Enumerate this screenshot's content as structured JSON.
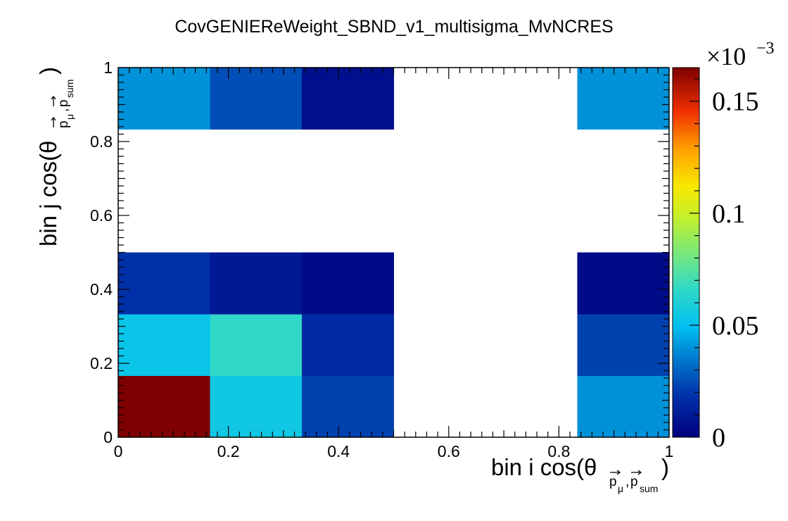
{
  "chart_data": {
    "type": "heatmap",
    "title": "CovGENIEReWeight_SBND_v1_multisigma_MvNCRES",
    "xlabel": {
      "main": "bin i cos(θ",
      "sub_vec1": "p",
      "sub_greek": "μ",
      "sub_sep": ",",
      "sub_vec2": "p",
      "sub_sum": "sum",
      "close": ")"
    },
    "ylabel": {
      "main": "bin j cos(θ",
      "sub_vec1": "p",
      "sub_greek": "μ",
      "sub_sep": ",",
      "sub_vec2": "p",
      "sub_sum": "sum",
      "close": ")"
    },
    "x_edges": [
      0,
      0.1667,
      0.3333,
      0.5,
      0.6667,
      0.8333,
      1.0
    ],
    "y_edges": [
      0,
      0.1667,
      0.3333,
      0.5,
      0.6667,
      0.8333,
      1.0
    ],
    "xlim": [
      0,
      1
    ],
    "ylim": [
      0,
      1
    ],
    "x_ticks": [
      "0",
      "0.2",
      "0.4",
      "0.6",
      "0.8",
      "1"
    ],
    "y_ticks": [
      "0",
      "0.2",
      "0.4",
      "0.6",
      "0.8",
      "1"
    ],
    "x_tick_values": [
      0,
      0.2,
      0.4,
      0.6,
      0.8,
      1
    ],
    "y_tick_values": [
      0,
      0.2,
      0.4,
      0.6,
      0.8,
      1
    ],
    "units_note": "values ×10^-3",
    "z_range": [
      0,
      0.165
    ],
    "values": [
      [
        0.165,
        0.055,
        0.022,
        null,
        null,
        0.04
      ],
      [
        0.053,
        0.066,
        0.016,
        null,
        null,
        0.022
      ],
      [
        0.018,
        0.01,
        0.004,
        null,
        null,
        0.004
      ],
      [
        null,
        null,
        null,
        null,
        null,
        null
      ],
      [
        null,
        null,
        null,
        null,
        null,
        null
      ],
      [
        0.04,
        0.025,
        0.006,
        null,
        null,
        0.04
      ]
    ],
    "colorbar": {
      "exponent_label": "×10",
      "exponent_power": "−3",
      "ticks": [
        "0",
        "0.05",
        "0.1",
        "0.15"
      ],
      "tick_values": [
        0,
        0.05,
        0.1,
        0.15
      ]
    }
  }
}
